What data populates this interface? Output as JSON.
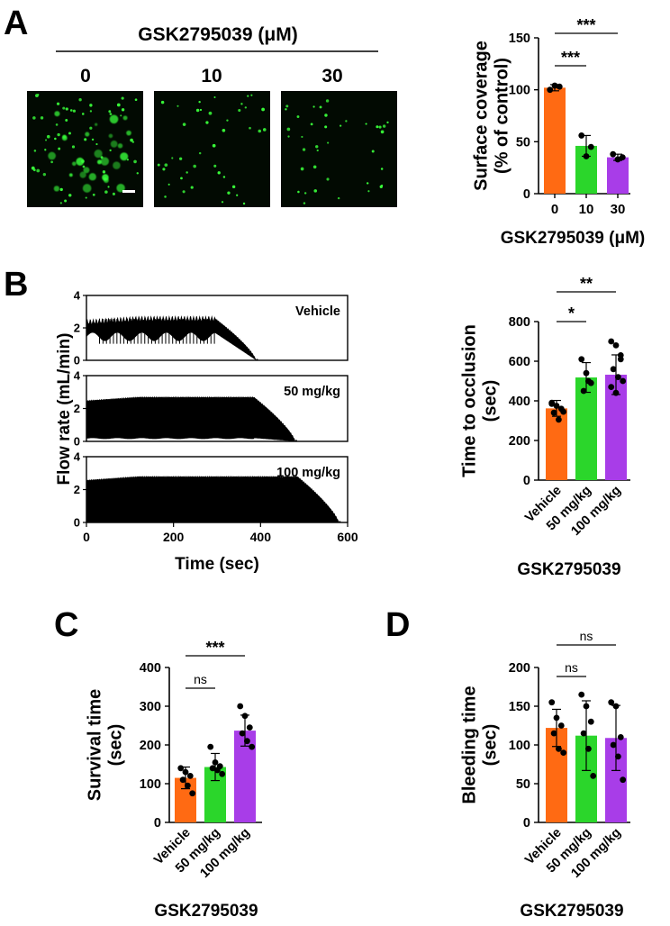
{
  "figure": {
    "panel_letters": [
      "A",
      "B",
      "C",
      "D"
    ]
  },
  "panelA": {
    "treatment_label": "GSK2795039 (μM)",
    "micrograph_columns": [
      "0",
      "10",
      "30"
    ]
  },
  "colors": {
    "orange": "#ff6a13",
    "green": "#2bd62b",
    "purple": "#a83de8",
    "dots": "#000000",
    "micrograph_bg": "#020a02",
    "micrograph_signal": "#39ff3a"
  },
  "chart_data": [
    {
      "id": "A-bar",
      "type": "bar",
      "categories": [
        "0",
        "10",
        "30"
      ],
      "values": [
        102,
        46,
        35
      ],
      "errors": [
        3,
        10,
        3
      ],
      "points": [
        [
          100,
          104,
          103
        ],
        [
          56,
          36,
          45
        ],
        [
          38,
          33,
          35
        ]
      ],
      "ylabel_lines": [
        "Surface coverage",
        "(% of control)"
      ],
      "xlabel": "GSK2795039 (μM)",
      "yticks": [
        "0",
        "50",
        "100",
        "150"
      ],
      "ylim": [
        0,
        150
      ],
      "colors": [
        "#ff6a13",
        "#2bd62b",
        "#a83de8"
      ],
      "significance": [
        {
          "from": 0,
          "to": 1,
          "label": "***"
        },
        {
          "from": 0,
          "to": 2,
          "label": "***"
        }
      ]
    },
    {
      "id": "B-trace",
      "type": "area",
      "ylabel": "Flow rate (mL/min)",
      "xlabel": "Time (sec)",
      "xticks": [
        "0",
        "200",
        "400",
        "600"
      ],
      "xlim": [
        0,
        600
      ],
      "yticks": [
        "0",
        "2",
        "4"
      ],
      "ylim": [
        0,
        4
      ],
      "traces": [
        {
          "label": "Vehicle",
          "occlusion_time": 390,
          "pulse_max": 2.6,
          "baseline": 1.7
        },
        {
          "label": "50 mg/kg",
          "occlusion_time": 480,
          "pulse_max": 2.7,
          "baseline": 0.2
        },
        {
          "label": "100 mg/kg",
          "occlusion_time": 580,
          "pulse_max": 2.8,
          "baseline": 0.0
        }
      ]
    },
    {
      "id": "B-bar",
      "type": "bar",
      "categories": [
        "Vehicle",
        "50 mg/kg",
        "100 mg/kg"
      ],
      "values": [
        362,
        518,
        532
      ],
      "errors": [
        40,
        75,
        100
      ],
      "points": [
        [
          390,
          375,
          360,
          340,
          305,
          345,
          385
        ],
        [
          610,
          540,
          490,
          450,
          500
        ],
        [
          700,
          680,
          610,
          560,
          520,
          500,
          470,
          440,
          630
        ]
      ],
      "ylabel_lines": [
        "Time to occlusion",
        "(sec)"
      ],
      "xlabel": "GSK2795039",
      "yticks": [
        "0",
        "200",
        "400",
        "600",
        "800"
      ],
      "ylim": [
        0,
        800
      ],
      "colors": [
        "#ff6a13",
        "#2bd62b",
        "#a83de8"
      ],
      "significance": [
        {
          "from": 0,
          "to": 1,
          "label": "*"
        },
        {
          "from": 0,
          "to": 2,
          "label": "**"
        }
      ]
    },
    {
      "id": "C-bar",
      "type": "bar",
      "categories": [
        "Vehicle",
        "50 mg/kg",
        "100 mg/kg"
      ],
      "values": [
        115,
        143,
        237
      ],
      "errors": [
        28,
        35,
        40
      ],
      "points": [
        [
          140,
          130,
          120,
          110,
          95,
          75
        ],
        [
          195,
          155,
          145,
          140,
          135,
          125
        ],
        [
          300,
          275,
          245,
          230,
          210,
          195
        ]
      ],
      "ylabel_lines": [
        "Survival time",
        "(sec)"
      ],
      "xlabel": "GSK2795039",
      "yticks": [
        "0",
        "100",
        "200",
        "300",
        "400"
      ],
      "ylim": [
        0,
        400
      ],
      "colors": [
        "#ff6a13",
        "#2bd62b",
        "#a83de8"
      ],
      "significance": [
        {
          "from": 0,
          "to": 1,
          "label": "ns"
        },
        {
          "from": 0,
          "to": 2,
          "label": "***"
        }
      ]
    },
    {
      "id": "D-bar",
      "type": "bar",
      "categories": [
        "Vehicle",
        "50 mg/kg",
        "100 mg/kg"
      ],
      "values": [
        122,
        112,
        109
      ],
      "errors": [
        24,
        45,
        42
      ],
      "points": [
        [
          155,
          135,
          125,
          115,
          95,
          90
        ],
        [
          165,
          150,
          130,
          115,
          95,
          60
        ],
        [
          155,
          150,
          110,
          100,
          85,
          55
        ]
      ],
      "ylabel_lines": [
        "Bleeding time",
        "(sec)"
      ],
      "xlabel": "GSK2795039",
      "yticks": [
        "0",
        "50",
        "100",
        "150",
        "200"
      ],
      "ylim": [
        0,
        200
      ],
      "colors": [
        "#ff6a13",
        "#2bd62b",
        "#a83de8"
      ],
      "significance": [
        {
          "from": 0,
          "to": 1,
          "label": "ns"
        },
        {
          "from": 0,
          "to": 2,
          "label": "ns"
        }
      ]
    }
  ]
}
